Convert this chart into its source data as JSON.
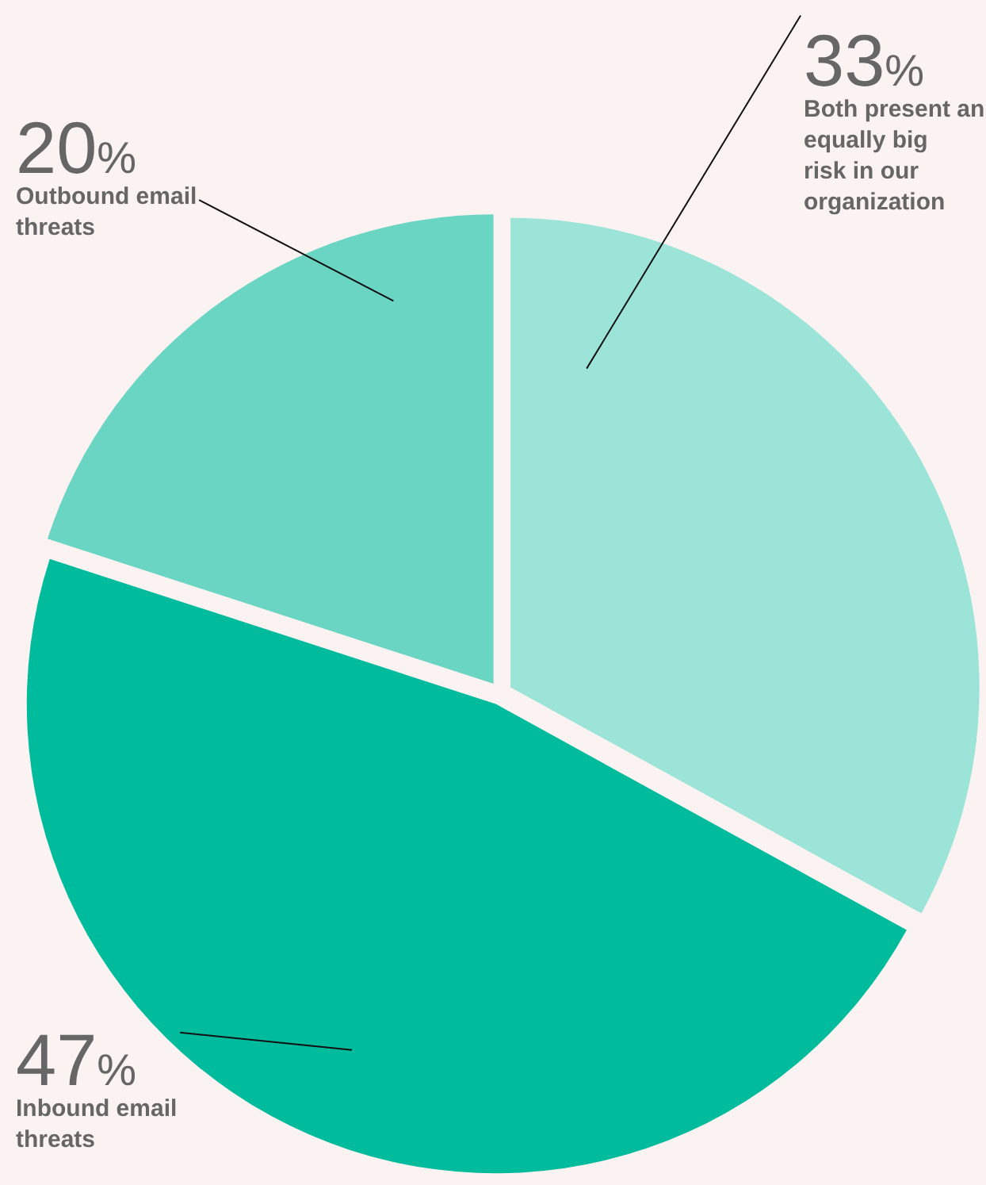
{
  "chart_data": {
    "type": "pie",
    "categories": [
      "Both present an equally big risk in our organization",
      "Inbound email threats",
      "Outbound email threats"
    ],
    "values": [
      33,
      47,
      20
    ],
    "colors": [
      "#9ce4d8",
      "#00bb9c",
      "#6ad5c2"
    ],
    "value_labels": [
      "33%",
      "47%",
      "20%"
    ],
    "legend": false
  }
}
